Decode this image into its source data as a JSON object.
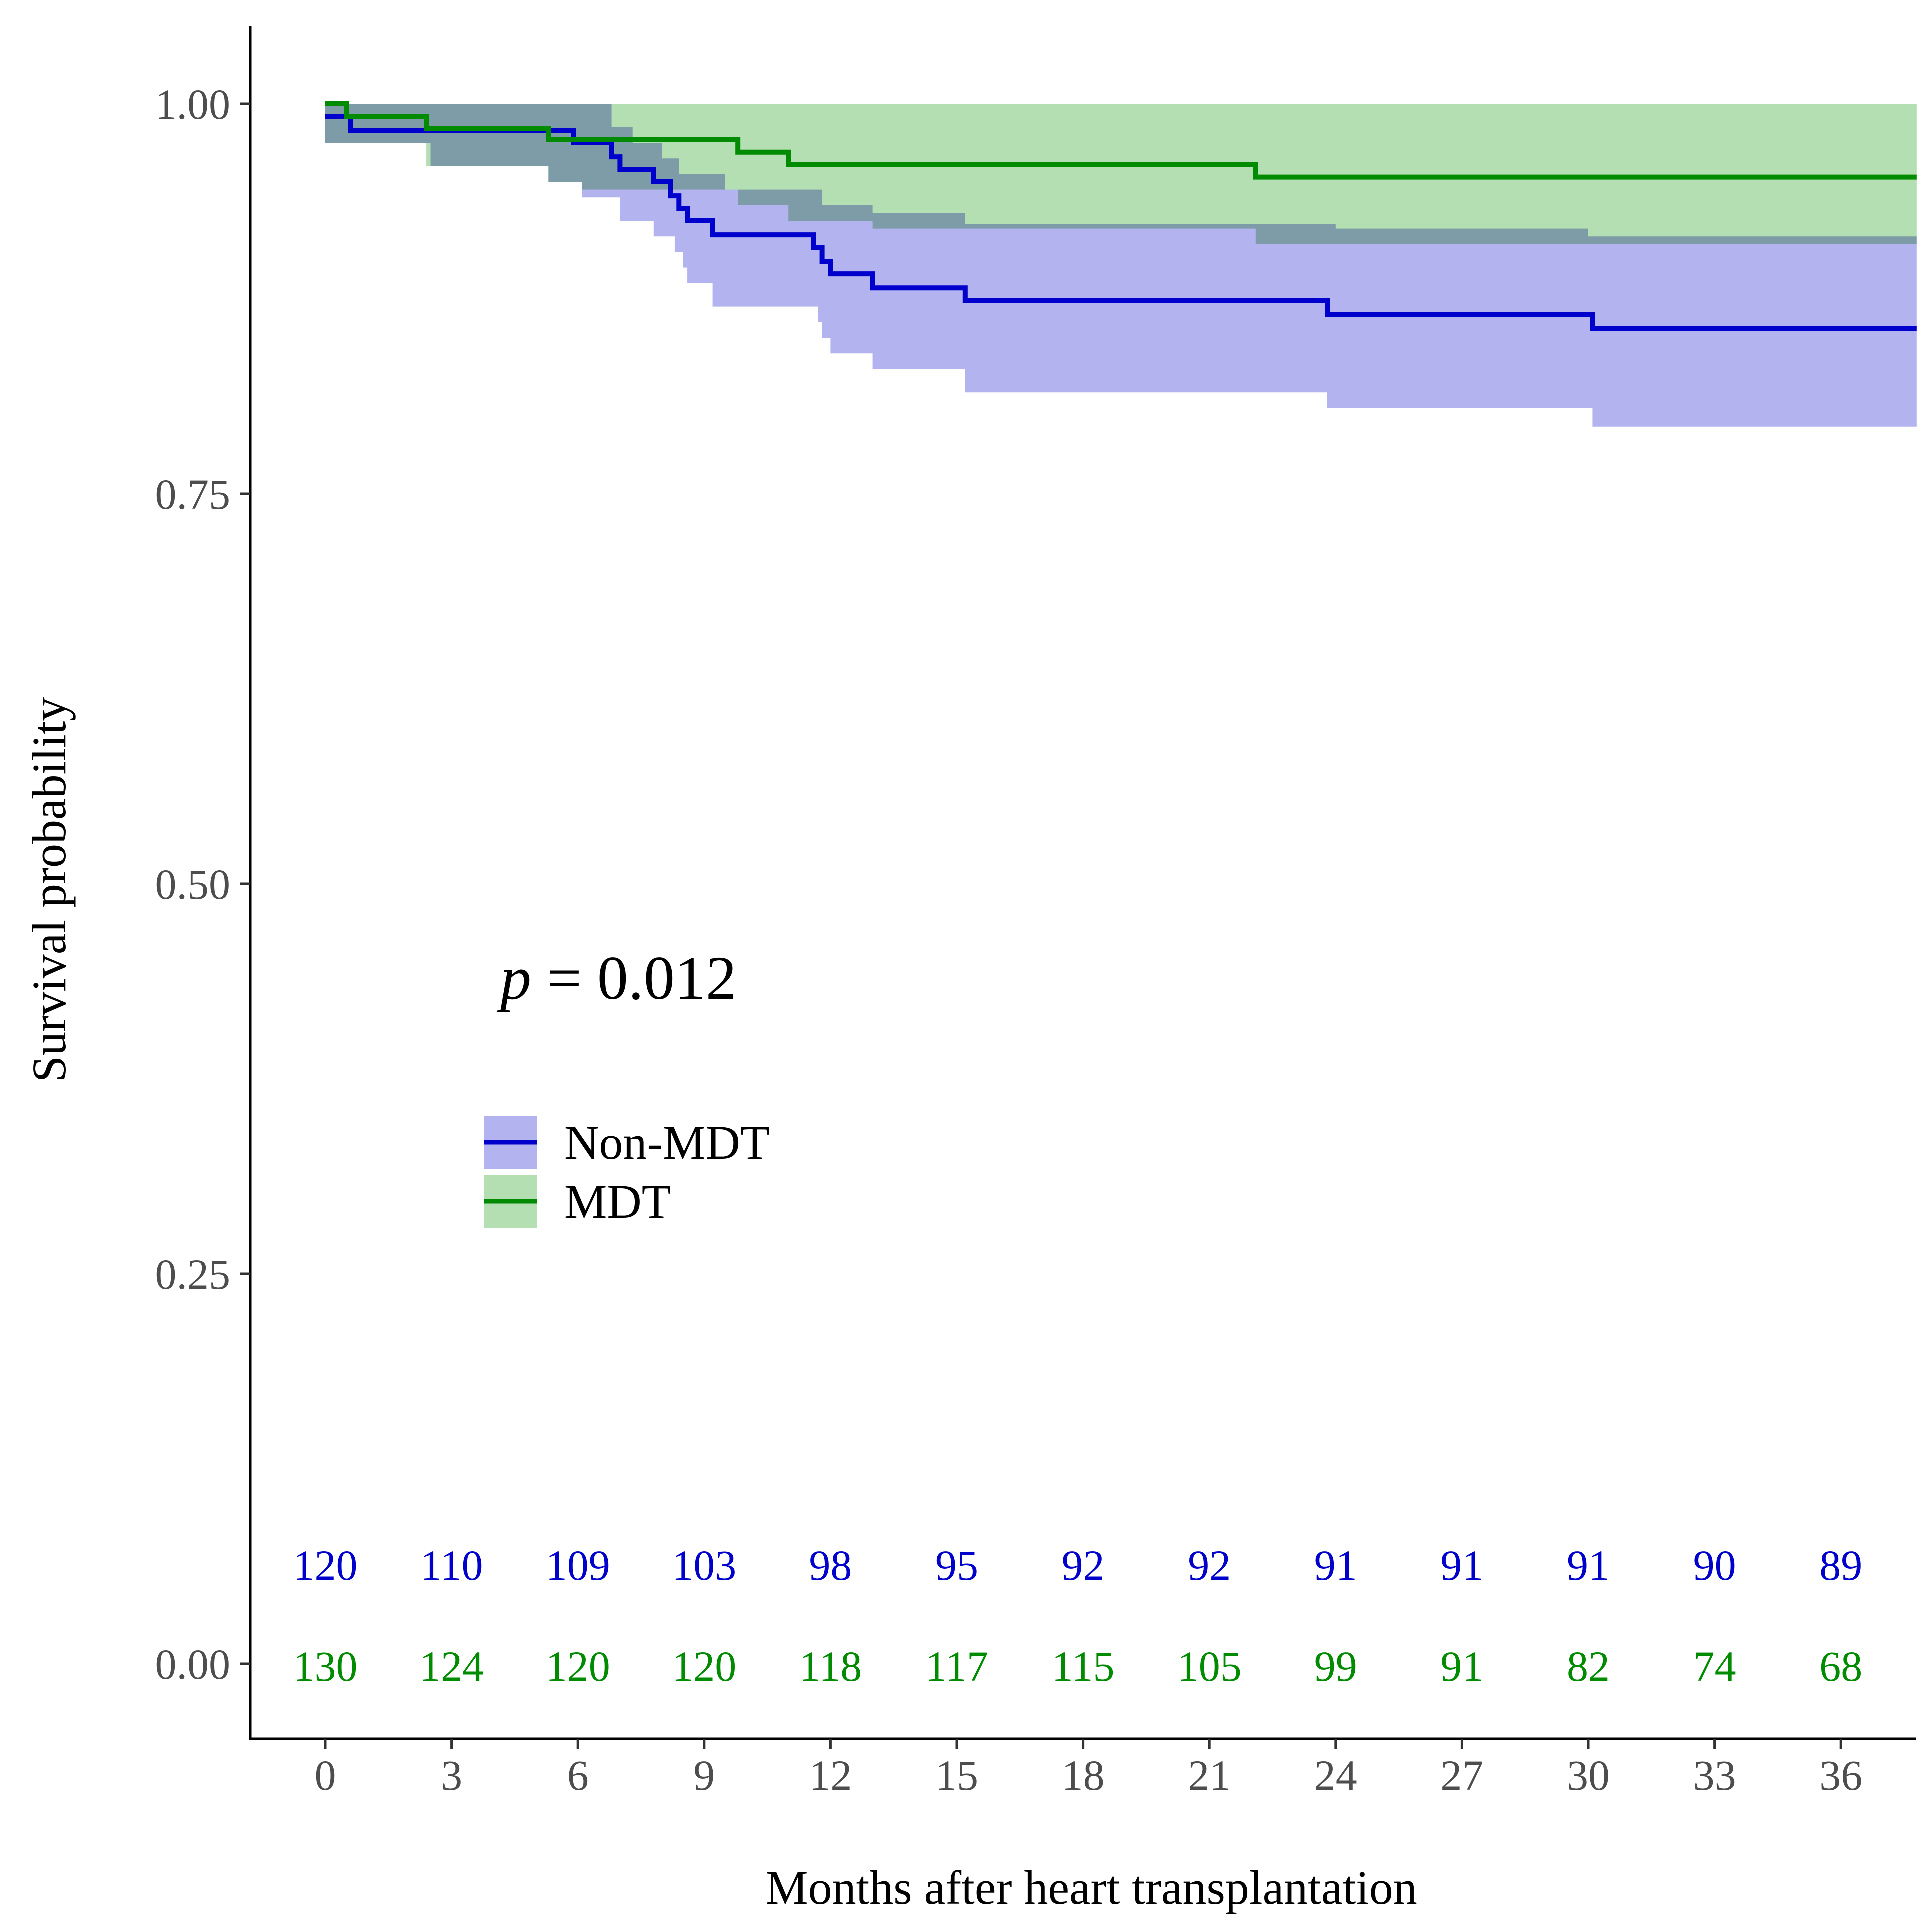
{
  "chart_data": {
    "type": "line",
    "subtype": "kaplan-meier",
    "title": "",
    "xlabel": "Months after heart transplantation",
    "ylabel": "Survival probability",
    "xlim": [
      -1.2,
      38.3
    ],
    "ylim": [
      -0.05,
      1.05
    ],
    "x_ticks": [
      0,
      3,
      6,
      9,
      12,
      15,
      18,
      21,
      24,
      27,
      30,
      33,
      36
    ],
    "y_ticks": [
      0.0,
      0.25,
      0.5,
      0.75,
      1.0
    ],
    "y_tick_labels": [
      "0.00",
      "0.25",
      "0.50",
      "0.75",
      "1.00"
    ],
    "x_tick_labels": [
      "0",
      "3",
      "6",
      "9",
      "12",
      "15",
      "18",
      "21",
      "24",
      "27",
      "30",
      "33",
      "36"
    ],
    "annotation": {
      "prefix": "p",
      "text": " = 0.012"
    },
    "legend": {
      "position": "center-left",
      "entries": [
        "Non-MDT",
        "MDT"
      ]
    },
    "series": [
      {
        "name": "Non-MDT",
        "color": "#0000cd",
        "band_color": "#b3b3f0",
        "steps": [
          [
            0,
            0.992
          ],
          [
            0.6,
            0.983
          ],
          [
            5.9,
            0.975
          ],
          [
            6.8,
            0.966
          ],
          [
            7.0,
            0.958
          ],
          [
            7.8,
            0.95
          ],
          [
            8.2,
            0.941
          ],
          [
            8.4,
            0.933
          ],
          [
            8.6,
            0.925
          ],
          [
            9.2,
            0.916
          ],
          [
            11.6,
            0.908
          ],
          [
            11.8,
            0.899
          ],
          [
            12,
            0.891
          ],
          [
            13.0,
            0.882
          ],
          [
            15.2,
            0.874
          ],
          [
            23.8,
            0.865
          ],
          [
            30.1,
            0.856
          ],
          [
            37.8,
            0.856
          ]
        ],
        "ci_lower": [
          [
            0,
            0.975
          ],
          [
            2.5,
            0.96
          ],
          [
            5.3,
            0.95
          ],
          [
            6.1,
            0.94
          ],
          [
            7.0,
            0.925
          ],
          [
            7.8,
            0.915
          ],
          [
            8.3,
            0.905
          ],
          [
            8.5,
            0.895
          ],
          [
            8.6,
            0.885
          ],
          [
            9.2,
            0.87
          ],
          [
            11.7,
            0.86
          ],
          [
            11.8,
            0.85
          ],
          [
            12,
            0.84
          ],
          [
            13.0,
            0.83
          ],
          [
            15.2,
            0.815
          ],
          [
            23.8,
            0.805
          ],
          [
            30.1,
            0.793
          ],
          [
            37.8,
            0.793
          ]
        ],
        "ci_upper": [
          [
            0,
            1.0
          ],
          [
            6.8,
            0.985
          ],
          [
            7.3,
            0.975
          ],
          [
            8.0,
            0.965
          ],
          [
            8.4,
            0.955
          ],
          [
            9.5,
            0.945
          ],
          [
            11.8,
            0.935
          ],
          [
            13.0,
            0.93
          ],
          [
            15.2,
            0.923
          ],
          [
            24,
            0.92
          ],
          [
            30,
            0.915
          ],
          [
            37.8,
            0.915
          ]
        ]
      },
      {
        "name": "MDT",
        "color": "#008b00",
        "band_color": "#b3dfb3",
        "steps": [
          [
            0,
            1.0
          ],
          [
            0.5,
            0.992
          ],
          [
            2.4,
            0.984
          ],
          [
            5.3,
            0.977
          ],
          [
            9.8,
            0.969
          ],
          [
            11.0,
            0.961
          ],
          [
            22.1,
            0.953
          ],
          [
            37.8,
            0.953
          ]
        ],
        "ci_lower": [
          [
            0,
            0.975
          ],
          [
            2.4,
            0.96
          ],
          [
            5.3,
            0.95
          ],
          [
            6.1,
            0.945
          ],
          [
            7.0,
            0.945
          ],
          [
            9.8,
            0.935
          ],
          [
            11.0,
            0.925
          ],
          [
            13.0,
            0.92
          ],
          [
            22.1,
            0.91
          ],
          [
            37.8,
            0.91
          ]
        ],
        "ci_upper": [
          [
            0,
            1.0
          ],
          [
            37.8,
            0.99
          ]
        ]
      }
    ],
    "risk_table": {
      "times": [
        0,
        3,
        6,
        9,
        12,
        15,
        18,
        21,
        24,
        27,
        30,
        33,
        36
      ],
      "rows": [
        {
          "name": "Non-MDT",
          "color": "#0000cd",
          "values": [
            120,
            110,
            109,
            103,
            98,
            95,
            92,
            92,
            91,
            91,
            91,
            90,
            89
          ]
        },
        {
          "name": "MDT",
          "color": "#008b00",
          "values": [
            130,
            124,
            120,
            120,
            118,
            117,
            115,
            105,
            99,
            91,
            82,
            74,
            68
          ]
        }
      ]
    }
  }
}
